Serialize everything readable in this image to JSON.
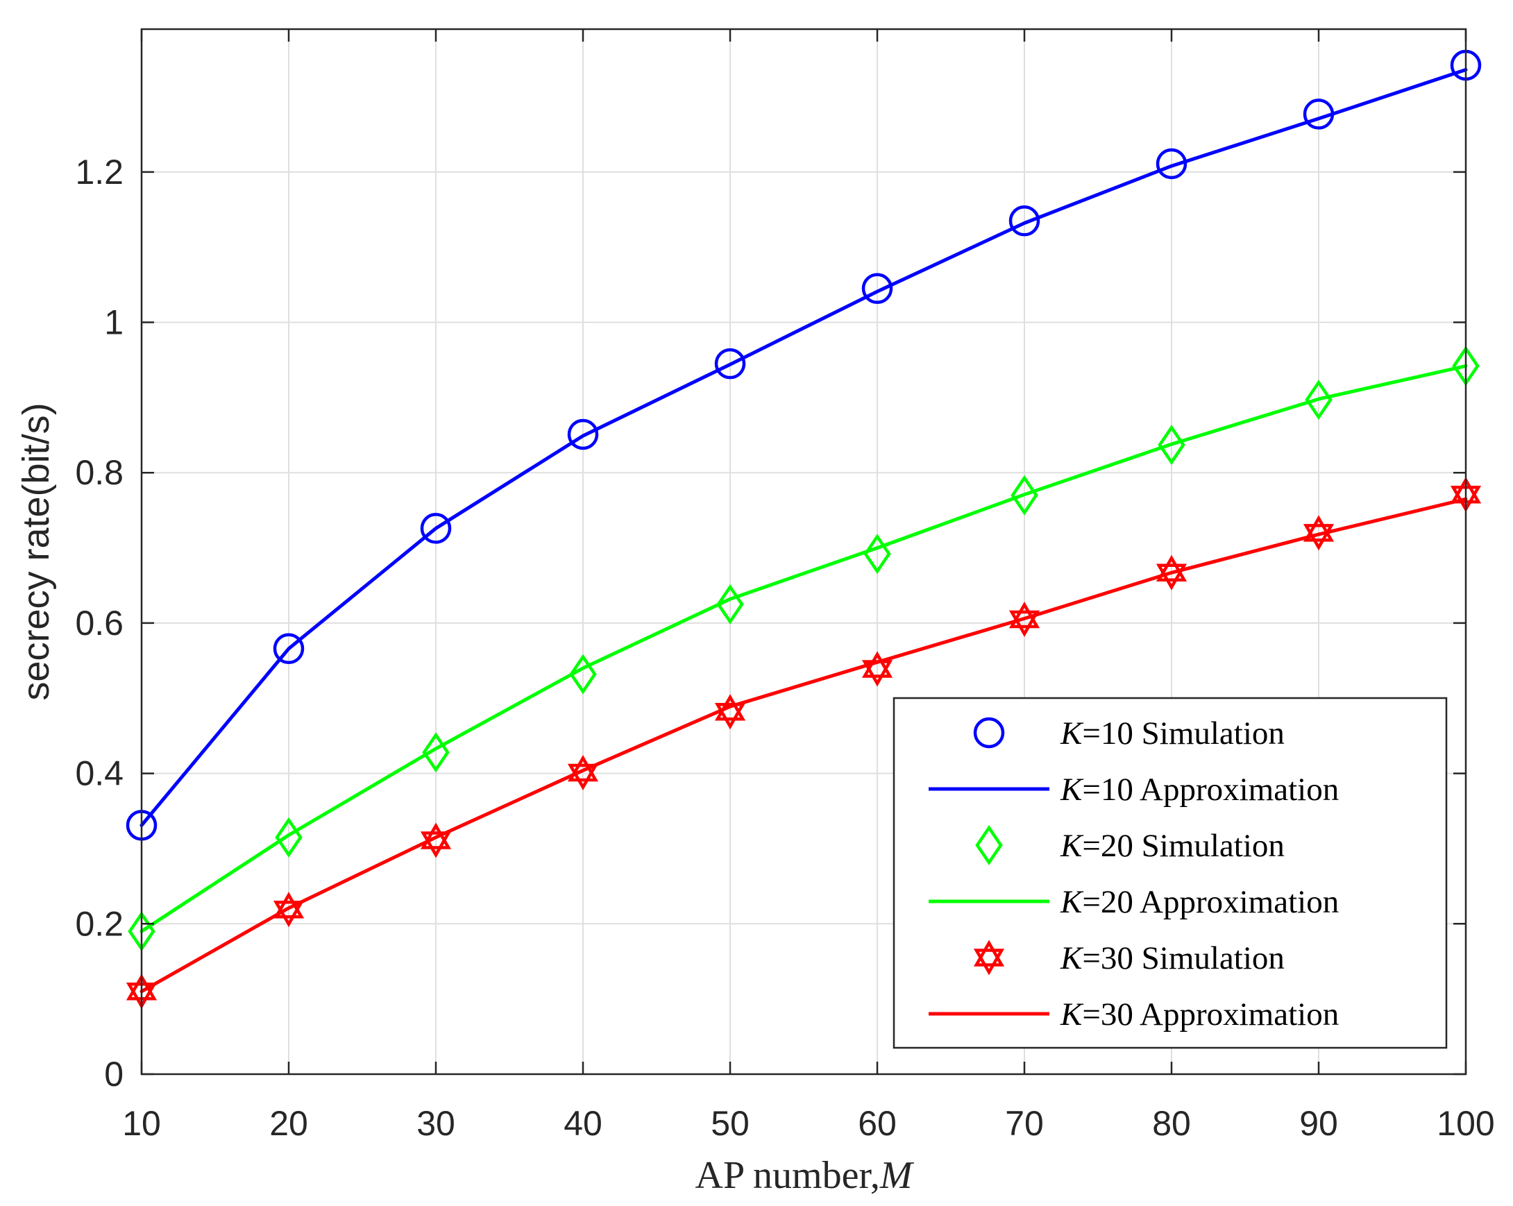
{
  "chart_data": {
    "type": "line",
    "title": "",
    "xlabel": "AP number,",
    "xlabel_var": "M",
    "ylabel": "secrecy rate(bit/s)",
    "x": [
      10,
      20,
      30,
      40,
      50,
      60,
      70,
      80,
      90,
      100
    ],
    "xlim": [
      10,
      100
    ],
    "ylim": [
      0,
      1.39
    ],
    "xticks": [
      "10",
      "20",
      "30",
      "40",
      "50",
      "60",
      "70",
      "80",
      "90",
      "100"
    ],
    "yticks": [
      "0",
      "0.2",
      "0.4",
      "0.6",
      "0.8",
      "1",
      "1.2"
    ],
    "ytick_values": [
      0,
      0.2,
      0.4,
      0.6,
      0.8,
      1.0,
      1.2
    ],
    "grid": true,
    "legend_position": "bottom-right",
    "series": [
      {
        "name": "K=10 Simulation",
        "k_var": "K",
        "k_rest": "=10 Simulation",
        "kind": "marker",
        "marker": "circle",
        "color": "#0000ff",
        "values": [
          0.331,
          0.566,
          0.726,
          0.851,
          0.945,
          1.045,
          1.135,
          1.211,
          1.277,
          1.342
        ]
      },
      {
        "name": "K=10 Approximation",
        "k_var": "K",
        "k_rest": "=10 Approximation",
        "kind": "line",
        "color": "#0000ff",
        "values": [
          0.331,
          0.566,
          0.726,
          0.849,
          0.944,
          1.041,
          1.132,
          1.208,
          1.271,
          1.336
        ]
      },
      {
        "name": "K=20 Simulation",
        "k_var": "K",
        "k_rest": "=20 Simulation",
        "kind": "marker",
        "marker": "diamond",
        "color": "#00ff00",
        "values": [
          0.19,
          0.315,
          0.428,
          0.532,
          0.625,
          0.692,
          0.77,
          0.837,
          0.897,
          0.942
        ]
      },
      {
        "name": "K=20 Approximation",
        "k_var": "K",
        "k_rest": "=20 Approximation",
        "kind": "line",
        "color": "#00ff00",
        "values": [
          0.19,
          0.318,
          0.433,
          0.54,
          0.632,
          0.7,
          0.771,
          0.838,
          0.898,
          0.942
        ]
      },
      {
        "name": "K=30 Simulation",
        "k_var": "K",
        "k_rest": "=30 Simulation",
        "kind": "marker",
        "marker": "hexagram",
        "color": "#ff0000",
        "values": [
          0.11,
          0.219,
          0.311,
          0.401,
          0.482,
          0.539,
          0.605,
          0.667,
          0.72,
          0.771
        ]
      },
      {
        "name": "K=30 Approximation",
        "k_var": "K",
        "k_rest": "=30 Approximation",
        "kind": "line",
        "color": "#ff0000",
        "values": [
          0.11,
          0.221,
          0.315,
          0.404,
          0.489,
          0.548,
          0.606,
          0.667,
          0.718,
          0.765
        ]
      }
    ]
  }
}
